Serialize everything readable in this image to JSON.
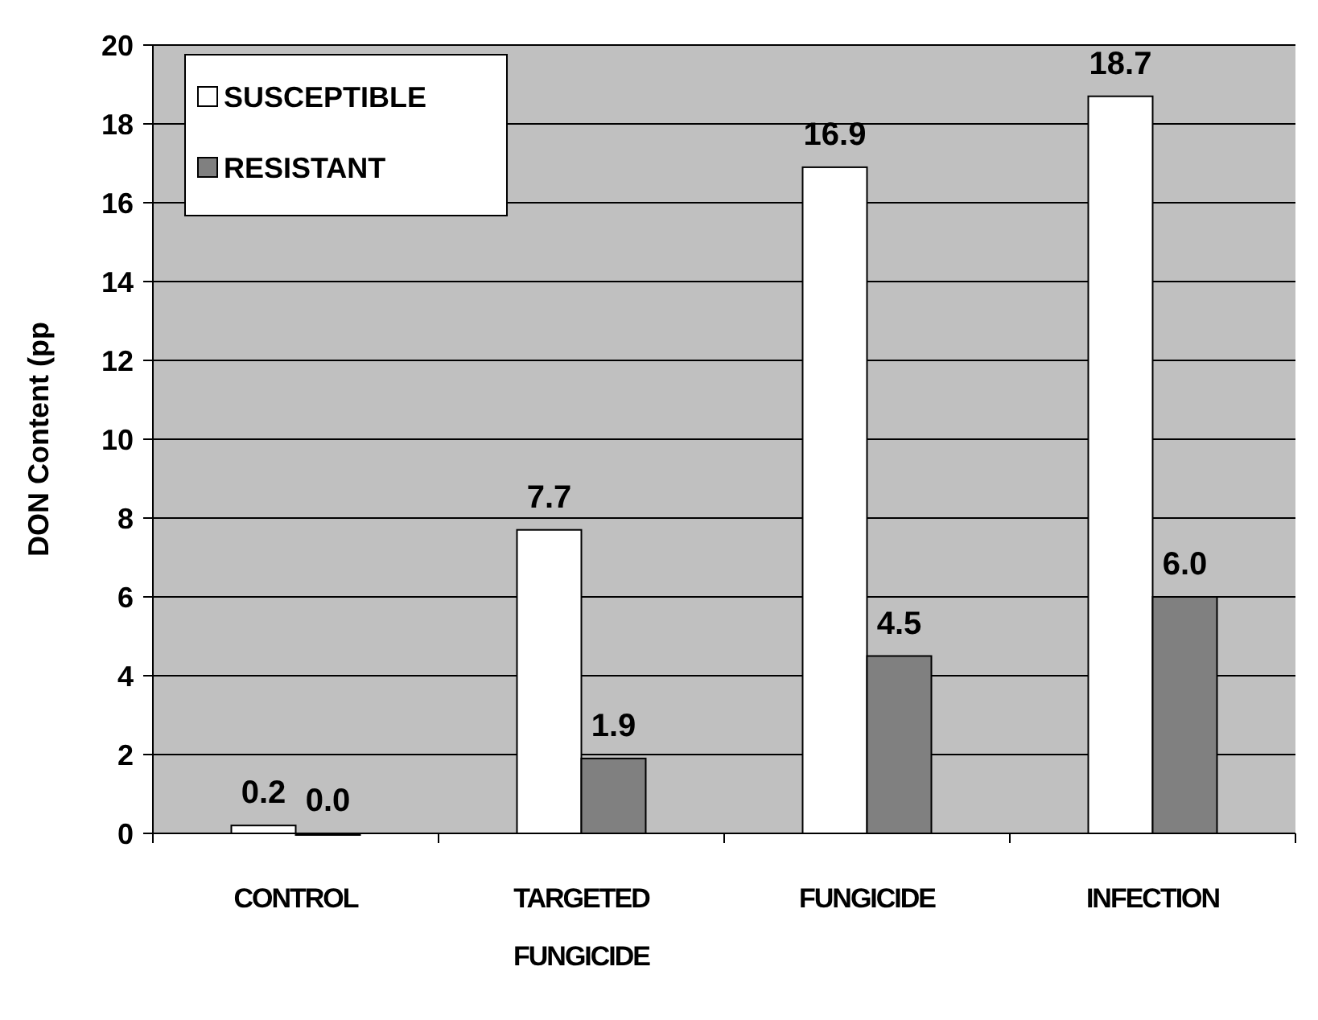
{
  "chart_data": {
    "type": "bar",
    "ylabel": "DON Content (pp",
    "categories": [
      "CONTROL",
      "TARGETED FUNGICIDE",
      "FUNGICIDE",
      "INFECTION"
    ],
    "series": [
      {
        "name": "SUSCEPTIBLE",
        "color": "#ffffff",
        "values": [
          0.2,
          7.7,
          16.9,
          18.7
        ],
        "value_labels": [
          "0.2",
          "7.7",
          "16.9",
          "18.7"
        ]
      },
      {
        "name": "RESISTANT",
        "color": "#808080",
        "values": [
          0.0,
          1.9,
          4.5,
          6.0
        ],
        "value_labels": [
          "0.0",
          "1.9",
          "4.5",
          "6.0"
        ]
      }
    ],
    "ylim": [
      0,
      20
    ],
    "yticks": [
      0,
      2,
      4,
      6,
      8,
      10,
      12,
      14,
      16,
      18,
      20
    ],
    "grid": "y",
    "legend": "top left"
  }
}
